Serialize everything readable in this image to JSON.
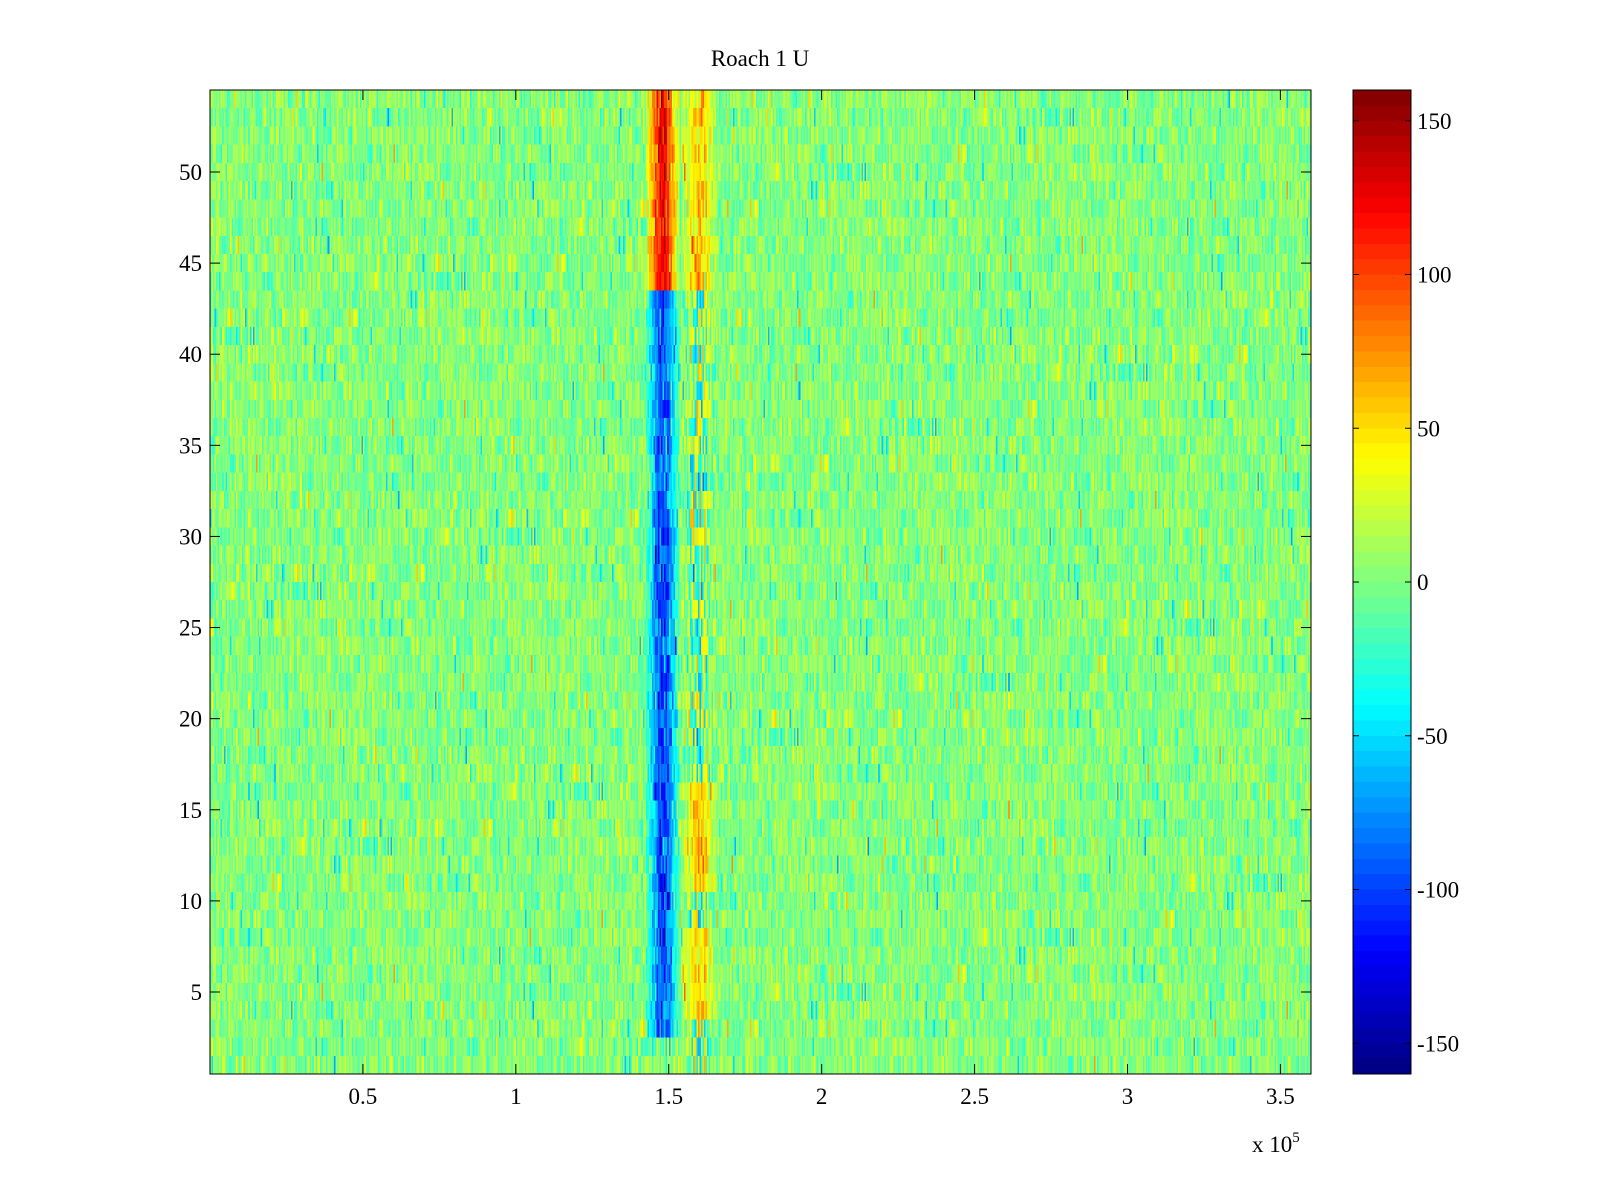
{
  "chart_data": {
    "type": "heatmap",
    "title": "Roach 1 U",
    "xlabel": "",
    "ylabel": "",
    "x_range": [
      0,
      360000
    ],
    "y_range": [
      0.5,
      54.5
    ],
    "rows": 54,
    "x_ticks": [
      50000,
      100000,
      150000,
      200000,
      250000,
      300000,
      350000
    ],
    "x_tick_labels": [
      "0.5",
      "1",
      "1.5",
      "2",
      "2.5",
      "3",
      "3.5"
    ],
    "x_exponent_label": "x 10",
    "x_exponent_power": "5",
    "y_ticks": [
      5,
      10,
      15,
      20,
      25,
      30,
      35,
      40,
      45,
      50
    ],
    "y_tick_labels": [
      "5",
      "10",
      "15",
      "20",
      "25",
      "30",
      "35",
      "40",
      "45",
      "50"
    ],
    "colorbar": {
      "colormap": "jet",
      "range": [
        -160,
        160
      ],
      "ticks": [
        150,
        100,
        50,
        0,
        -50,
        -100,
        -150
      ],
      "tick_labels": [
        "150",
        "100",
        "50",
        "0",
        "-50",
        "-100",
        "-150"
      ]
    },
    "background_value_range": [
      -40,
      30
    ],
    "feature_band": {
      "x_range": [
        140000,
        170000
      ],
      "description_values": "strong negative values (about -100 to -160) near x=148000 for most rows; strong positive values (about 100 to 160) near x=148000 for rows 44-54; moderate positive values (about 50 to 90) near x=160000"
    },
    "grid": false,
    "legend": "none"
  }
}
